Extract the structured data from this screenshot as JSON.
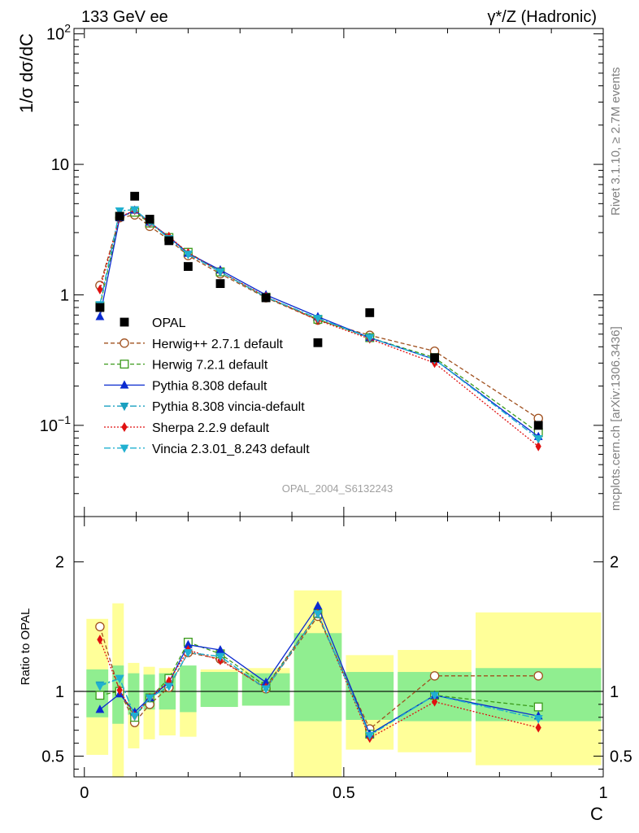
{
  "header": {
    "energy_label": "133 GeV ee",
    "process_label": "γ*/Z (Hadronic)",
    "paper_id": "OPAL_2004_S6132243",
    "rivet_label": "Rivet 3.1.10, ≥ 2.7M events",
    "site_label": "mcplots.cern.ch [arXiv:1306.3436]"
  },
  "colors": {
    "data": "#000000",
    "herwigpp": "#a0501e",
    "herwig7": "#3a9a1a",
    "pythia": "#0a2ad0",
    "vincia_default": "#1aa0c0",
    "sherpa": "#e01010",
    "vincia": "#20b0d0",
    "band_inner": "#90ee90",
    "band_outer": "#ffff99"
  },
  "chart_data": [
    {
      "type": "line",
      "panel": "main",
      "ylabel": "1/σ dσ/dC",
      "yscale": "log",
      "ylim": [
        0.02,
        110
      ],
      "xlim": [
        -0.02,
        1.0
      ],
      "ytick_labels": [
        {
          "value": 0.1,
          "base": "10",
          "exp": "−1"
        },
        {
          "value": 1,
          "base": "1",
          "exp": ""
        },
        {
          "value": 10,
          "base": "10",
          "exp": ""
        },
        {
          "value": 100,
          "base": "10",
          "exp": "2"
        }
      ],
      "x": [
        0.03,
        0.068,
        0.097,
        0.126,
        0.163,
        0.2,
        0.262,
        0.35,
        0.45,
        0.55,
        0.675,
        0.875
      ],
      "data_series": {
        "name": "OPAL",
        "values": [
          0.8,
          4.0,
          5.7,
          3.8,
          2.6,
          1.65,
          1.22,
          0.95,
          0.43,
          0.73,
          0.33,
          0.1
        ]
      },
      "series": [
        {
          "name": "Herwig++ 2.7.1 default",
          "color_key": "herwigpp",
          "marker": "open-circle",
          "dash": "5,3",
          "values": [
            1.18,
            3.9,
            4.1,
            3.35,
            2.65,
            2.0,
            1.45,
            0.95,
            0.64,
            0.49,
            0.37,
            0.113
          ]
        },
        {
          "name": "Herwig 7.2.1 default",
          "color_key": "herwig7",
          "marker": "open-square",
          "dash": "5,3",
          "values": [
            0.82,
            4.0,
            4.3,
            3.55,
            2.75,
            2.12,
            1.5,
            0.96,
            0.65,
            0.47,
            0.33,
            0.088
          ]
        },
        {
          "name": "Pythia 8.308 default",
          "color_key": "pythia",
          "marker": "triangle-up",
          "dash": "",
          "values": [
            0.68,
            3.9,
            4.45,
            3.6,
            2.78,
            2.08,
            1.55,
            1.0,
            0.68,
            0.47,
            0.32,
            0.082
          ]
        },
        {
          "name": "Pythia 8.308 vincia-default",
          "color_key": "vincia_default",
          "marker": "triangle-down",
          "dash": "8,3,2,3",
          "values": [
            0.84,
            4.4,
            4.5,
            3.6,
            2.7,
            2.05,
            1.5,
            0.96,
            0.66,
            0.47,
            0.32,
            0.079
          ]
        },
        {
          "name": "Sherpa 2.2.9 default",
          "color_key": "sherpa",
          "marker": "diamond",
          "dash": "2,2",
          "values": [
            1.1,
            3.95,
            4.45,
            3.55,
            2.8,
            2.1,
            1.5,
            0.97,
            0.64,
            0.46,
            0.3,
            0.069
          ]
        },
        {
          "name": "Vincia 2.3.01_8.243 default",
          "color_key": "vincia",
          "marker": "triangle-down",
          "dash": "8,3,2,3",
          "values": [
            0.84,
            4.4,
            4.5,
            3.6,
            2.7,
            2.05,
            1.5,
            0.96,
            0.66,
            0.47,
            0.32,
            0.079
          ]
        }
      ]
    },
    {
      "type": "line",
      "panel": "ratio",
      "xlabel": "C",
      "ylabel": "Ratio to OPAL",
      "ylim": [
        0.34,
        2.35
      ],
      "xlim": [
        -0.02,
        1.0
      ],
      "yticks": [
        0.5,
        1,
        2
      ],
      "ytick_labels": [
        "0.5",
        "1",
        "2"
      ],
      "xticks": [
        0,
        0.5,
        1
      ],
      "xtick_labels": [
        "0",
        "0.5",
        "1"
      ],
      "reference_line": 1,
      "bins": [
        0.0,
        0.05,
        0.08,
        0.11,
        0.14,
        0.18,
        0.22,
        0.3,
        0.4,
        0.5,
        0.6,
        0.75,
        1.0
      ],
      "band_inner": [
        [
          0.8,
          1.17
        ],
        [
          0.75,
          1.2
        ],
        [
          0.82,
          1.14
        ],
        [
          0.86,
          1.13
        ],
        [
          0.86,
          1.14
        ],
        [
          0.84,
          1.2
        ],
        [
          0.88,
          1.15
        ],
        [
          0.89,
          1.14
        ],
        [
          0.77,
          1.45
        ],
        [
          0.78,
          1.15
        ],
        [
          0.77,
          1.15
        ],
        [
          0.77,
          1.18
        ]
      ],
      "band_outer": [
        [
          0.51,
          1.56
        ],
        [
          0.34,
          1.68
        ],
        [
          0.56,
          1.22
        ],
        [
          0.63,
          1.19
        ],
        [
          0.66,
          1.18
        ],
        [
          0.65,
          1.19
        ],
        [
          0.88,
          1.17
        ],
        [
          0.89,
          1.18
        ],
        [
          0.34,
          1.78
        ],
        [
          0.55,
          1.28
        ],
        [
          0.53,
          1.32
        ],
        [
          0.43,
          1.61
        ]
      ],
      "x": [
        0.03,
        0.068,
        0.097,
        0.126,
        0.163,
        0.2,
        0.262,
        0.35,
        0.45,
        0.55,
        0.675,
        0.875
      ],
      "series": [
        {
          "name": "Herwig++ 2.7.1 default",
          "color_key": "herwigpp",
          "marker": "open-circle",
          "dash": "5,3",
          "values": [
            1.5,
            1.0,
            0.76,
            0.9,
            1.03,
            1.3,
            1.25,
            1.02,
            1.58,
            0.71,
            1.12,
            1.12
          ]
        },
        {
          "name": "Herwig 7.2.1 default",
          "color_key": "herwig7",
          "marker": "open-square",
          "dash": "5,3",
          "values": [
            0.97,
            1.0,
            0.8,
            0.95,
            1.1,
            1.38,
            1.29,
            1.04,
            1.6,
            0.67,
            0.97,
            0.88
          ]
        },
        {
          "name": "Pythia 8.308 default",
          "color_key": "pythia",
          "marker": "triangle-up",
          "dash": "",
          "values": [
            0.86,
            0.98,
            0.84,
            0.95,
            1.07,
            1.36,
            1.32,
            1.07,
            1.66,
            0.67,
            0.97,
            0.81
          ]
        },
        {
          "name": "Pythia 8.308 vincia-default",
          "color_key": "vincia_default",
          "marker": "triangle-down",
          "dash": "8,3,2,3",
          "values": [
            1.05,
            1.1,
            0.81,
            0.95,
            1.04,
            1.3,
            1.27,
            1.02,
            1.6,
            0.66,
            0.97,
            0.79
          ]
        },
        {
          "name": "Sherpa 2.2.9 default",
          "color_key": "sherpa",
          "marker": "diamond",
          "dash": "2,2",
          "values": [
            1.4,
            1.01,
            0.81,
            0.95,
            1.08,
            1.32,
            1.24,
            1.03,
            1.6,
            0.64,
            0.92,
            0.72
          ]
        },
        {
          "name": "Vincia 2.3.01_8.243 default",
          "color_key": "vincia",
          "marker": "triangle-down",
          "dash": "8,3,2,3",
          "values": [
            1.04,
            1.1,
            0.81,
            0.95,
            1.04,
            1.3,
            1.27,
            1.02,
            1.6,
            0.66,
            0.97,
            0.79
          ]
        }
      ]
    }
  ]
}
